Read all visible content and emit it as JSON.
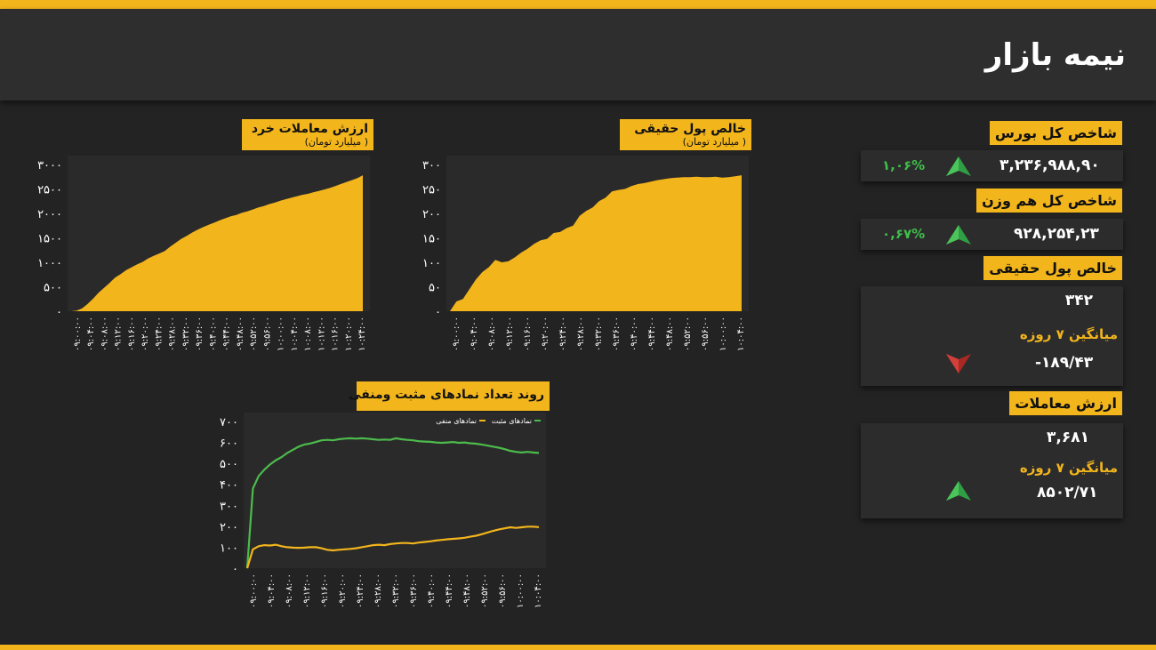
{
  "header": {
    "title": "نیمه بازار"
  },
  "colors": {
    "accent": "#f2b51c",
    "background": "#232323",
    "up": "#2f9e44",
    "down": "#c0302c",
    "positive_line": "#4cbb4c",
    "negative_line": "#f2b51c"
  },
  "sidebar": {
    "index_label": "شاخص کل بورس",
    "index_value": "۳,۲۳۶,۹۸۸,۹۰",
    "index_change": "۱,۰۶%",
    "index_trend": "up-arrow-icon",
    "ew_label": "شاخص کل هم وزن",
    "ew_value": "۹۲۸,۲۵۴,۲۳",
    "ew_change": "۰,۶۷%",
    "ew_trend": "up-arrow-icon",
    "realmoney_label": "خالص پول حقیقی",
    "realmoney_value": "۳۴۲",
    "realmoney_avg_label": "میانگین ۷ روزه",
    "realmoney_avg_value": "-۱۸۹/۴۳",
    "realmoney_trend": "down-arrow-icon",
    "turnover_label": "ارزش معاملات",
    "turnover_value": "۳,۶۸۱",
    "turnover_avg_label": "میانگین ۷ روزه",
    "turnover_avg_value": "۸۵۰۲/۷۱",
    "turnover_trend": "up-arrow-icon"
  },
  "chart_data": [
    {
      "id": "retail",
      "type": "area",
      "title": "ارزش معاملات خرد",
      "subtitle": "( میلیارد تومان)",
      "ylim": [
        0,
        3000
      ],
      "yticks": [
        "۳۰۰۰",
        "۲۵۰۰",
        "۲۰۰۰",
        "۱۵۰۰",
        "۱۰۰۰",
        "۵۰۰",
        "۰"
      ],
      "ytick_values": [
        3000,
        2500,
        2000,
        1500,
        1000,
        500,
        0
      ],
      "xticks": [
        "۰۹:۰۰:۰۰",
        "۰۹:۰۴:۰۰",
        "۰۹:۰۸:۰۰",
        "۰۹:۱۲:۰۰",
        "۰۹:۱۶:۰۰",
        "۰۹:۲۰:۰۰",
        "۰۹:۲۴:۰۰",
        "۰۹:۲۸:۰۰",
        "۰۹:۳۲:۰۰",
        "۰۹:۳۶:۰۰",
        "۰۹:۴۰:۰۰",
        "۰۹:۴۴:۰۰",
        "۰۹:۴۸:۰۰",
        "۰۹:۵۲:۰۰",
        "۰۹:۵۶:۰۰",
        "۱۰:۰۰:۰۰",
        "۱۰:۰۴:۰۰",
        "۱۰:۰۸:۰۰",
        "۱۰:۱۲:۰۰",
        "۱۰:۱۶:۰۰",
        "۱۰:۲۰:۰۰",
        "۱۰:۲۴:۰۰"
      ],
      "values": [
        0,
        10,
        60,
        150,
        260,
        380,
        480,
        580,
        690,
        760,
        840,
        900,
        960,
        1010,
        1080,
        1130,
        1180,
        1230,
        1320,
        1400,
        1480,
        1540,
        1610,
        1670,
        1720,
        1770,
        1810,
        1860,
        1900,
        1940,
        1970,
        2010,
        2040,
        2080,
        2120,
        2150,
        2190,
        2220,
        2260,
        2290,
        2320,
        2350,
        2380,
        2400,
        2430,
        2460,
        2490,
        2520,
        2560,
        2600,
        2640,
        2680,
        2720,
        2780
      ]
    },
    {
      "id": "realmoney",
      "type": "area",
      "title": "خالص پول حقیقی",
      "subtitle": "( میلیارد تومان)",
      "ylim": [
        0,
        300
      ],
      "yticks": [
        "۳۰۰",
        "۲۵۰",
        "۲۰۰",
        "۱۵۰",
        "۱۰۰",
        "۵۰",
        "۰"
      ],
      "ytick_values": [
        300,
        250,
        200,
        150,
        100,
        50,
        0
      ],
      "xticks": [
        "۰۹:۰۰:۰۰",
        "۰۹:۰۴:۰۰",
        "۰۹:۰۸:۰۰",
        "۰۹:۱۲:۰۰",
        "۰۹:۱۶:۰۰",
        "۰۹:۲۰:۰۰",
        "۰۹:۲۴:۰۰",
        "۰۹:۲۸:۰۰",
        "۰۹:۳۲:۰۰",
        "۰۹:۳۶:۰۰",
        "۰۹:۴۰:۰۰",
        "۰۹:۴۴:۰۰",
        "۰۹:۴۸:۰۰",
        "۰۹:۵۲:۰۰",
        "۰۹:۵۶:۰۰",
        "۱۰:۰۰:۰۰",
        "۱۰:۰۴:۰۰"
      ],
      "values": [
        0,
        20,
        25,
        45,
        65,
        80,
        90,
        105,
        100,
        102,
        110,
        120,
        128,
        138,
        145,
        148,
        160,
        162,
        170,
        175,
        195,
        205,
        212,
        225,
        232,
        245,
        248,
        250,
        256,
        260,
        262,
        265,
        268,
        270,
        272,
        273,
        274,
        274,
        275,
        274,
        274,
        275,
        273,
        274,
        276,
        278
      ]
    },
    {
      "id": "symbols",
      "type": "line",
      "title": "روند تعداد نمادهای مثبت ومنفی",
      "ylim": [
        0,
        700
      ],
      "yticks": [
        "۷۰۰",
        "۶۰۰",
        "۵۰۰",
        "۴۰۰",
        "۳۰۰",
        "۲۰۰",
        "۱۰۰",
        "۰"
      ],
      "ytick_values": [
        700,
        600,
        500,
        400,
        300,
        200,
        100,
        0
      ],
      "xticks": [
        "۰۹:۰۰:۰۰",
        "۰۹:۰۴:۰۰",
        "۰۹:۰۸:۰۰",
        "۰۹:۱۲:۰۰",
        "۰۹:۱۶:۰۰",
        "۰۹:۲۰:۰۰",
        "۰۹:۲۴:۰۰",
        "۰۹:۲۸:۰۰",
        "۰۹:۳۲:۰۰",
        "۰۹:۳۶:۰۰",
        "۰۹:۴۰:۰۰",
        "۰۹:۴۴:۰۰",
        "۰۹:۴۸:۰۰",
        "۰۹:۵۲:۰۰",
        "۰۹:۵۶:۰۰",
        "۱۰:۰۰:۰۰",
        "۱۰:۰۴:۰۰"
      ],
      "series": [
        {
          "name": "نمادهای مثبت",
          "color": "#4cbb4c",
          "values": [
            0,
            380,
            440,
            470,
            495,
            515,
            530,
            550,
            565,
            580,
            590,
            595,
            602,
            610,
            612,
            610,
            615,
            618,
            620,
            618,
            620,
            618,
            615,
            612,
            614,
            612,
            620,
            615,
            612,
            610,
            606,
            604,
            603,
            600,
            598,
            600,
            602,
            598,
            600,
            596,
            594,
            590,
            585,
            580,
            575,
            568,
            560,
            555,
            552,
            555,
            552,
            550
          ]
        },
        {
          "name": "نمادهای منفی",
          "color": "#f2b51c",
          "values": [
            0,
            90,
            105,
            110,
            108,
            112,
            105,
            100,
            98,
            97,
            98,
            100,
            100,
            95,
            88,
            85,
            88,
            90,
            92,
            95,
            100,
            105,
            110,
            112,
            110,
            115,
            118,
            120,
            120,
            118,
            122,
            125,
            128,
            132,
            135,
            138,
            140,
            142,
            145,
            150,
            155,
            162,
            170,
            178,
            185,
            190,
            195,
            192,
            195,
            198,
            198,
            196
          ]
        }
      ]
    }
  ]
}
